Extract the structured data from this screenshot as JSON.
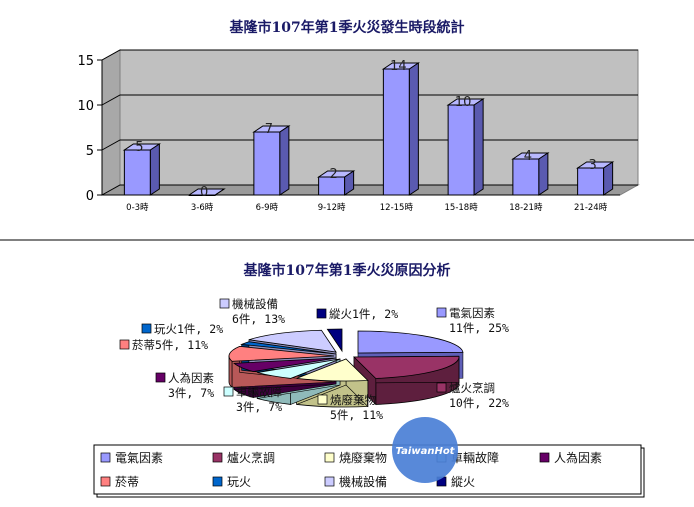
{
  "chart_data": [
    {
      "type": "bar",
      "title": "基隆市107年第1季火災發生時段統計",
      "categories": [
        "0-3時",
        "3-6時",
        "6-9時",
        "9-12時",
        "12-15時",
        "15-18時",
        "18-21時",
        "21-24時"
      ],
      "values": [
        5,
        0,
        7,
        2,
        14,
        10,
        4,
        3
      ],
      "ylim": [
        0,
        15
      ],
      "yticks": [
        0,
        5,
        10,
        15
      ],
      "xlabel": "",
      "ylabel": "",
      "grid": true,
      "bar_color": "#9999ff",
      "wall_color": "#c0c0c0"
    },
    {
      "type": "pie",
      "title": "基隆市107年第1季火災原因分析",
      "slices": [
        {
          "name": "電氣因素",
          "value": 11,
          "label_line1": "電氣因素",
          "label_line2": "11件, 25%",
          "color": "#9999ff",
          "dark": "#5f5fb8"
        },
        {
          "name": "爐火烹調",
          "value": 10,
          "label_line1": "爐火烹調",
          "label_line2": "10件, 22%",
          "color": "#993366",
          "dark": "#5e1f3e"
        },
        {
          "name": "燒廢棄物",
          "value": 5,
          "label_line1": "燒廢棄物",
          "label_line2": "5件, 11%",
          "color": "#ffffcc",
          "dark": "#c2c28a"
        },
        {
          "name": "車輛故障",
          "value": 3,
          "label_line1": "車輛故障",
          "label_line2": "3件, 7%",
          "color": "#ccffff",
          "dark": "#8fbaba"
        },
        {
          "name": "人為因素",
          "value": 3,
          "label_line1": "人為因素",
          "label_line2": "3件, 7%",
          "color": "#660066",
          "dark": "#3d003d"
        },
        {
          "name": "菸蒂",
          "value": 5,
          "label_line1": "菸蒂5件, 11%",
          "label_line2": "",
          "color": "#ff8080",
          "dark": "#b85858"
        },
        {
          "name": "玩火",
          "value": 1,
          "label_line1": "玩火1件, 2%",
          "label_line2": "",
          "color": "#0066cc",
          "dark": "#004080"
        },
        {
          "name": "機械設備",
          "value": 6,
          "label_line1": "機械設備",
          "label_line2": "6件, 13%",
          "color": "#ccccff",
          "dark": "#8e8eba"
        },
        {
          "name": "縱火",
          "value": 1,
          "label_line1": "縱火1件, 2%",
          "label_line2": "",
          "color": "#000080",
          "dark": "#00004d"
        }
      ],
      "legend_placement": "bottom"
    }
  ],
  "watermark": {
    "text": "TaiwanHot",
    "color": "#4a7fd6"
  }
}
